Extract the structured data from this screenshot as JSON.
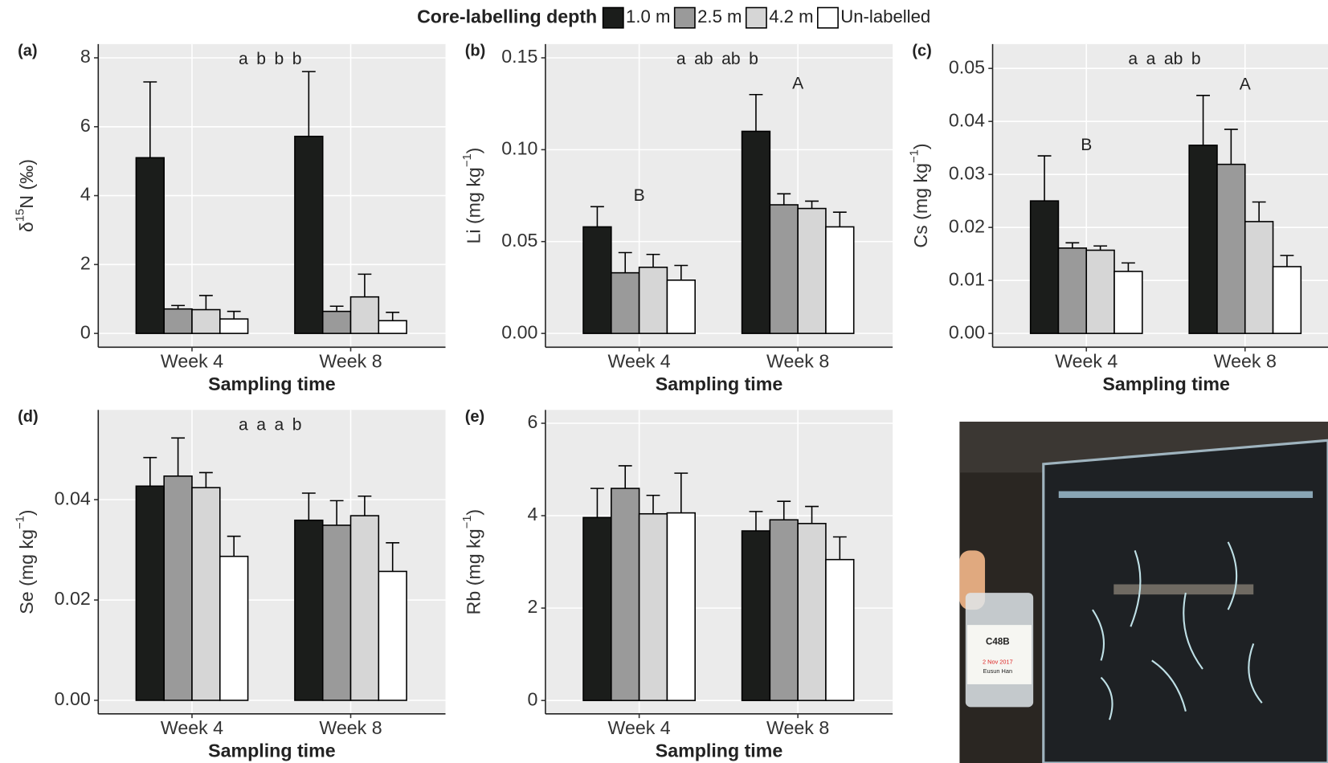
{
  "chart_data": [
    {
      "type": "bar",
      "panel_label": "(a)",
      "legend_title": "Core-labelling depth",
      "ylabel": {
        "pre": "δ",
        "sup": "15",
        "post": "N (‰)"
      },
      "xlabel": "Sampling time",
      "categories": [
        "Week 4",
        "Week 8"
      ],
      "series": [
        {
          "name": "1.0 m",
          "color": "#1b1d1b",
          "values": [
            5.1,
            5.72
          ],
          "errors": [
            2.2,
            1.88
          ]
        },
        {
          "name": "2.5 m",
          "color": "#9a9a9a",
          "values": [
            0.71,
            0.64
          ],
          "errors": [
            0.1,
            0.15
          ]
        },
        {
          "name": "4.2 m",
          "color": "#d6d6d6",
          "values": [
            0.69,
            1.06
          ],
          "errors": [
            0.41,
            0.66
          ]
        },
        {
          "name": "Un-labelled",
          "color": "#ffffff",
          "values": [
            0.42,
            0.37
          ],
          "errors": [
            0.22,
            0.24
          ]
        }
      ],
      "series_letters": [
        "a",
        "b",
        "b",
        "b"
      ],
      "ylim": [
        -0.4,
        8.4
      ],
      "yticks": [
        0,
        2,
        4,
        6,
        8
      ],
      "grid": true
    },
    {
      "type": "bar",
      "panel_label": "(b)",
      "ylabel": {
        "pre": "Li (mg kg",
        "sup": "−1",
        "post": ")"
      },
      "xlabel": "Sampling time",
      "categories": [
        "Week 4",
        "Week 8"
      ],
      "series": [
        {
          "color": "#1b1d1b",
          "values": [
            0.058,
            0.11
          ],
          "errors": [
            0.011,
            0.02
          ]
        },
        {
          "color": "#9a9a9a",
          "values": [
            0.033,
            0.07
          ],
          "errors": [
            0.011,
            0.006
          ]
        },
        {
          "color": "#d6d6d6",
          "values": [
            0.036,
            0.068
          ],
          "errors": [
            0.007,
            0.004
          ]
        },
        {
          "color": "#ffffff",
          "values": [
            0.029,
            0.058
          ],
          "errors": [
            0.008,
            0.008
          ]
        }
      ],
      "series_letters": [
        "a",
        "ab",
        "ab",
        "b"
      ],
      "group_letters": [
        "B",
        "A"
      ],
      "ylim": [
        -0.0075,
        0.1575
      ],
      "yticks": [
        {
          "value": 0,
          "label": "0.00"
        },
        {
          "value": 0.05,
          "label": "0.05"
        },
        {
          "value": 0.1,
          "label": "0.10"
        },
        {
          "value": 0.15,
          "label": "0.15"
        }
      ],
      "grid": true
    },
    {
      "type": "bar",
      "panel_label": "(c)",
      "ylabel": {
        "pre": "Cs (mg kg",
        "sup": "−1",
        "post": ")"
      },
      "xlabel": "Sampling time",
      "categories": [
        "Week 4",
        "Week 8"
      ],
      "series": [
        {
          "color": "#1b1d1b",
          "values": [
            0.025,
            0.0355
          ],
          "errors": [
            0.0085,
            0.0094
          ]
        },
        {
          "color": "#9a9a9a",
          "values": [
            0.0161,
            0.0319
          ],
          "errors": [
            0.001,
            0.0066
          ]
        },
        {
          "color": "#d6d6d6",
          "values": [
            0.0157,
            0.0211
          ],
          "errors": [
            0.0008,
            0.0037
          ]
        },
        {
          "color": "#ffffff",
          "values": [
            0.0117,
            0.0126
          ],
          "errors": [
            0.0016,
            0.0021
          ]
        }
      ],
      "series_letters": [
        "a",
        "a",
        "ab",
        "b"
      ],
      "group_letters": [
        "B",
        "A"
      ],
      "ylim": [
        -0.0026,
        0.0546
      ],
      "yticks": [
        {
          "value": 0,
          "label": "0.00"
        },
        {
          "value": 0.01,
          "label": "0.01"
        },
        {
          "value": 0.02,
          "label": "0.02"
        },
        {
          "value": 0.03,
          "label": "0.03"
        },
        {
          "value": 0.04,
          "label": "0.04"
        },
        {
          "value": 0.05,
          "label": "0.05"
        }
      ],
      "grid": true
    },
    {
      "type": "bar",
      "panel_label": "(d)",
      "ylabel": {
        "pre": "Se (mg kg",
        "sup": "−1",
        "post": ")"
      },
      "xlabel": "Sampling time",
      "categories": [
        "Week 4",
        "Week 8"
      ],
      "series": [
        {
          "color": "#1b1d1b",
          "values": [
            0.0427,
            0.0359
          ],
          "errors": [
            0.0057,
            0.0054
          ]
        },
        {
          "color": "#9a9a9a",
          "values": [
            0.0447,
            0.0349
          ],
          "errors": [
            0.0076,
            0.0049
          ]
        },
        {
          "color": "#d6d6d6",
          "values": [
            0.0424,
            0.0368
          ],
          "errors": [
            0.003,
            0.0039
          ]
        },
        {
          "color": "#ffffff",
          "values": [
            0.0287,
            0.0257
          ],
          "errors": [
            0.004,
            0.0057
          ]
        }
      ],
      "series_letters": [
        "a",
        "a",
        "a",
        "b"
      ],
      "ylim": [
        -0.0027,
        0.0579
      ],
      "yticks": [
        {
          "value": 0,
          "label": "0.00"
        },
        {
          "value": 0.02,
          "label": "0.02"
        },
        {
          "value": 0.04,
          "label": "0.04"
        }
      ],
      "grid": true
    },
    {
      "type": "bar",
      "panel_label": "(e)",
      "ylabel": {
        "pre": "Rb (mg kg",
        "sup": "−1",
        "post": ")"
      },
      "xlabel": "Sampling time",
      "categories": [
        "Week 4",
        "Week 8"
      ],
      "series": [
        {
          "color": "#1b1d1b",
          "values": [
            3.96,
            3.67
          ],
          "errors": [
            0.63,
            0.42
          ]
        },
        {
          "color": "#9a9a9a",
          "values": [
            4.59,
            3.91
          ],
          "errors": [
            0.49,
            0.4
          ]
        },
        {
          "color": "#d6d6d6",
          "values": [
            4.04,
            3.83
          ],
          "errors": [
            0.4,
            0.37
          ]
        },
        {
          "color": "#ffffff",
          "values": [
            4.06,
            3.05
          ],
          "errors": [
            0.86,
            0.49
          ]
        }
      ],
      "ylim": [
        -0.29,
        6.29
      ],
      "yticks": [
        0,
        2,
        4,
        6
      ],
      "grid": true
    }
  ],
  "photo": {
    "label": "C48B",
    "date": "2 Nov 2017",
    "name": "Eusun Han"
  }
}
